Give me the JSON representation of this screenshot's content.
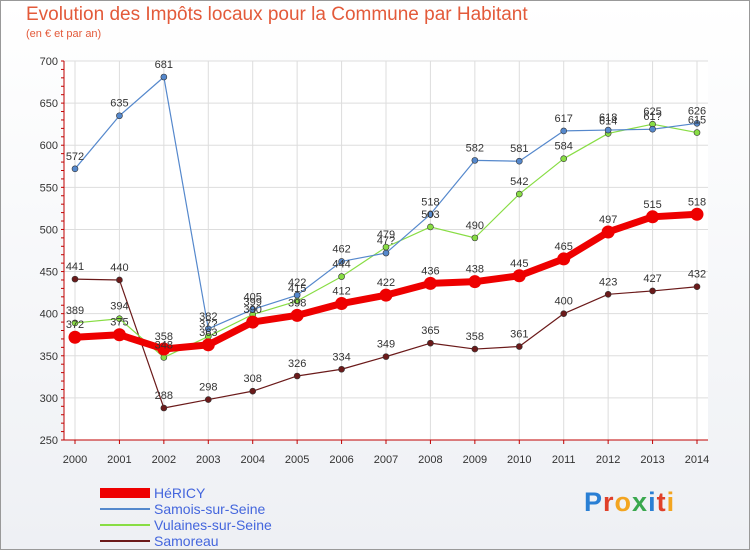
{
  "header": {
    "title": "Evolution des Impôts locaux pour la Commune par Habitant",
    "subtitle": "(en € et par an)"
  },
  "logo": {
    "text": "Proxiti",
    "letter_colors": [
      "#2a7fd4",
      "#e0402a",
      "#f3a520",
      "#3aa84e",
      "#2a7fd4",
      "#e0402a",
      "#f3a520"
    ]
  },
  "colors": {
    "title": "#e35a3a",
    "axis": "#c00000",
    "grid": "#dddddd",
    "legend_text": "#4466dd"
  },
  "chart_data": {
    "type": "line",
    "title": "Evolution des Impôts locaux pour la Commune par Habitant",
    "subtitle": "(en € et par an)",
    "xlabel": "",
    "ylabel": "",
    "x": [
      "2000",
      "2001",
      "2002",
      "2003",
      "2004",
      "2005",
      "2006",
      "2007",
      "2008",
      "2009",
      "2010",
      "2011",
      "2012",
      "2013",
      "2014"
    ],
    "ylim": [
      250,
      700
    ],
    "yticks": [
      250,
      300,
      350,
      400,
      450,
      500,
      550,
      600,
      650,
      700
    ],
    "grid": true,
    "legend_position": "bottom-left",
    "series": [
      {
        "name": "Samoreau",
        "color": "#6b1a1a",
        "values": [
          441,
          440,
          288,
          298,
          308,
          326,
          334,
          349,
          365,
          358,
          361,
          400,
          423,
          427,
          432
        ],
        "labels": [
          "441",
          "440",
          "288",
          "298",
          "308",
          "326",
          "334",
          "349",
          "365",
          "358",
          "361",
          "400",
          "423",
          "427",
          "432"
        ]
      },
      {
        "name": "Vulaines-sur-Seine",
        "color": "#88dd44",
        "values": [
          389,
          394,
          348,
          373,
          399,
          415,
          444,
          479,
          503,
          490,
          542,
          584,
          614,
          625,
          615
        ],
        "labels": [
          "389",
          "394",
          "348",
          "37?",
          "399",
          "415",
          "444",
          "479",
          "503",
          "490",
          "542",
          "584",
          "614",
          "625",
          "615"
        ]
      },
      {
        "name": "Samois-sur-Seine",
        "color": "#5588cc",
        "values": [
          572,
          635,
          681,
          382,
          405,
          422,
          462,
          472,
          518,
          582,
          581,
          617,
          618,
          619,
          626
        ],
        "labels": [
          "572",
          "635",
          "681",
          "382",
          "405",
          "422",
          "462",
          "47?",
          "518",
          "582",
          "581",
          "617",
          "618",
          "61?",
          "626"
        ]
      },
      {
        "name": "HéRICY",
        "color": "#ee0000",
        "values": [
          372,
          375,
          358,
          363,
          390,
          398,
          412,
          422,
          436,
          438,
          445,
          465,
          497,
          515,
          518
        ],
        "labels": [
          "372",
          "375",
          "358",
          "363",
          "390",
          "398",
          "412",
          "422",
          "436",
          "438",
          "445",
          "465",
          "497",
          "515",
          "518"
        ]
      }
    ],
    "legend": [
      "HéRICY",
      "Samois-sur-Seine",
      "Vulaines-sur-Seine",
      "Samoreau"
    ]
  }
}
